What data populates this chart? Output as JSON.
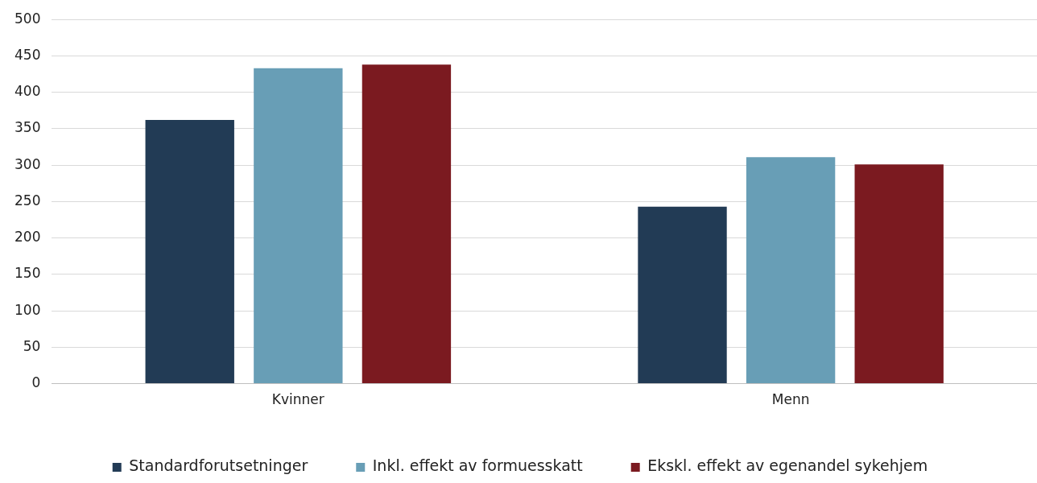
{
  "chart_data": {
    "type": "bar",
    "categories": [
      "Kvinner",
      "Menn"
    ],
    "series": [
      {
        "name": "Standardforutsetninger",
        "color": "#223b55",
        "values": [
          362,
          243
        ]
      },
      {
        "name": "Inkl. effekt av formuesskatt",
        "color": "#689eb6",
        "values": [
          433,
          311
        ]
      },
      {
        "name": "Ekskl. effekt av egenandel sykehjem",
        "color": "#7b1a20",
        "values": [
          438,
          301
        ]
      }
    ],
    "ylim": [
      0,
      500
    ],
    "yticks": [
      0,
      50,
      100,
      150,
      200,
      250,
      300,
      350,
      400,
      450,
      500
    ],
    "grid": "y",
    "legend": "bottom"
  }
}
